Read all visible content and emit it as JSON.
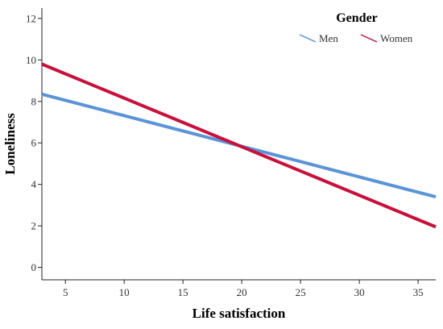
{
  "chart_data": {
    "type": "line",
    "title": "",
    "xlabel": "Life satisfaction",
    "ylabel": "Loneliness",
    "xlim": [
      3,
      36.5
    ],
    "ylim": [
      -0.6,
      12.5
    ],
    "xticks": [
      5,
      10,
      15,
      20,
      25,
      30,
      35
    ],
    "yticks": [
      0,
      2,
      4,
      6,
      8,
      10,
      12
    ],
    "grid": false,
    "legend": {
      "title": "Gender",
      "position": "top-right"
    },
    "series": [
      {
        "name": "Men",
        "color": "#5b93d8",
        "x": [
          3,
          36.5
        ],
        "y": [
          8.35,
          3.4
        ]
      },
      {
        "name": "Women",
        "color": "#c8103a",
        "x": [
          3,
          36.5
        ],
        "y": [
          9.8,
          1.95
        ]
      }
    ]
  }
}
